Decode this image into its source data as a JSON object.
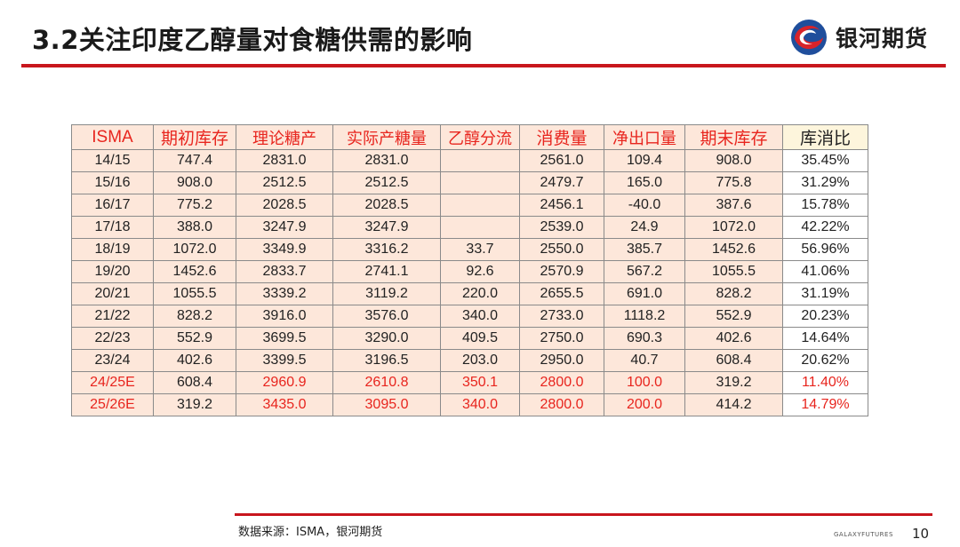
{
  "header": {
    "title": "3.2关注印度乙醇量对食糖供需的影响",
    "logo_text": "银河期货",
    "logo_icon": "galaxy-swirl-logo",
    "accent_color": "#c8161d"
  },
  "table": {
    "headers": [
      "ISMA",
      "期初库存",
      "理论糖产",
      "实际产糖量",
      "乙醇分流",
      "消费量",
      "净出口量",
      "期末库存",
      "库消比"
    ],
    "rows": [
      [
        "14/15",
        "747.4",
        "2831.0",
        "2831.0",
        "",
        "2561.0",
        "109.4",
        "908.0",
        "35.45%"
      ],
      [
        "15/16",
        "908.0",
        "2512.5",
        "2512.5",
        "",
        "2479.7",
        "165.0",
        "775.8",
        "31.29%"
      ],
      [
        "16/17",
        "775.2",
        "2028.5",
        "2028.5",
        "",
        "2456.1",
        "-40.0",
        "387.6",
        "15.78%"
      ],
      [
        "17/18",
        "388.0",
        "3247.9",
        "3247.9",
        "",
        "2539.0",
        "24.9",
        "1072.0",
        "42.22%"
      ],
      [
        "18/19",
        "1072.0",
        "3349.9",
        "3316.2",
        "33.7",
        "2550.0",
        "385.7",
        "1452.6",
        "56.96%"
      ],
      [
        "19/20",
        "1452.6",
        "2833.7",
        "2741.1",
        "92.6",
        "2570.9",
        "567.2",
        "1055.5",
        "41.06%"
      ],
      [
        "20/21",
        "1055.5",
        "3339.2",
        "3119.2",
        "220.0",
        "2655.5",
        "691.0",
        "828.2",
        "31.19%"
      ],
      [
        "21/22",
        "828.2",
        "3916.0",
        "3576.0",
        "340.0",
        "2733.0",
        "1118.2",
        "552.9",
        "20.23%"
      ],
      [
        "22/23",
        "552.9",
        "3699.5",
        "3290.0",
        "409.5",
        "2750.0",
        "690.3",
        "402.6",
        "14.64%"
      ],
      [
        "23/24",
        "402.6",
        "3399.5",
        "3196.5",
        "203.0",
        "2950.0",
        "40.7",
        "608.4",
        "20.62%"
      ],
      [
        "24/25E",
        "608.4",
        "2960.9",
        "2610.8",
        "350.1",
        "2800.0",
        "100.0",
        "319.2",
        "11.40%"
      ],
      [
        "25/26E",
        "319.2",
        "3435.0",
        "3095.0",
        "340.0",
        "2800.0",
        "200.0",
        "414.2",
        "14.79%"
      ]
    ],
    "colors": {
      "header_text": "#e8251e",
      "body_bg": "#fde7da",
      "estimate_text": "#e8251e"
    }
  },
  "footer": {
    "source": "数据来源：ISMA，银河期货",
    "brand_en": "GALAXYFUTURES",
    "page_number": "10"
  }
}
